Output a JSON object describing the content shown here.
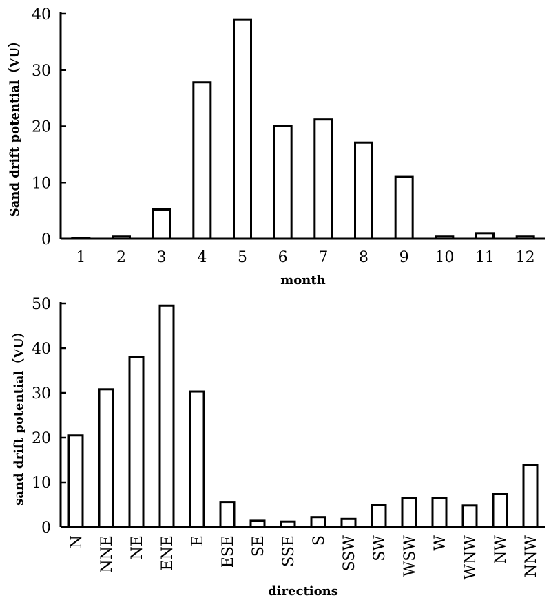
{
  "chart_data": [
    {
      "type": "bar",
      "title": "",
      "xlabel": "month",
      "ylabel": "Sand drift potential（VU）",
      "ylim": [
        0,
        40
      ],
      "yticks": [
        0,
        10,
        20,
        30,
        40
      ],
      "grid": false,
      "categories": [
        "1",
        "2",
        "3",
        "4",
        "5",
        "6",
        "7",
        "8",
        "9",
        "10",
        "11",
        "12"
      ],
      "values": [
        0,
        0.4,
        5.2,
        27.8,
        39,
        20,
        21.2,
        17.1,
        11,
        0.4,
        1,
        0.4
      ]
    },
    {
      "type": "bar",
      "title": "",
      "xlabel": "directions",
      "ylabel": "sand drift potential（VU）",
      "ylim": [
        0,
        50
      ],
      "yticks": [
        0,
        10,
        20,
        30,
        40,
        50
      ],
      "grid": false,
      "categories": [
        "N",
        "NNE",
        "NE",
        "ENE",
        "E",
        "ESE",
        "SE",
        "SSE",
        "S",
        "SSW",
        "SW",
        "WSW",
        "W",
        "WNW",
        "NW",
        "NNW"
      ],
      "values": [
        20.5,
        30.8,
        38,
        49.5,
        30.3,
        5.6,
        1.4,
        1.2,
        2.2,
        1.8,
        4.9,
        6.4,
        6.4,
        4.8,
        7.4,
        13.8
      ]
    }
  ]
}
